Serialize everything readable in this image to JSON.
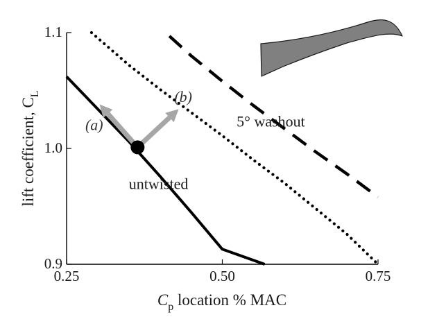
{
  "chart_data": {
    "type": "line",
    "title": "",
    "xlabel_main": "C",
    "xlabel_sub": "p",
    "xlabel_rest": " location % MAC",
    "ylabel_main": "lift coefficient, C",
    "ylabel_sub": "L",
    "xlim": [
      0.25,
      0.75
    ],
    "ylim": [
      0.9,
      1.1
    ],
    "x_ticks": [
      0.25,
      0.5,
      0.75
    ],
    "x_tick_labels": [
      "0.25",
      "0.50",
      "0.75"
    ],
    "y_ticks": [
      0.9,
      1.0,
      1.1
    ],
    "y_tick_labels": [
      "0.9",
      "1.0",
      "1.1"
    ],
    "grid": false,
    "series": [
      {
        "name": "untwisted",
        "style": "solid",
        "color": "#000000",
        "x": [
          0.25,
          0.3,
          0.35,
          0.4,
          0.45,
          0.5,
          0.568
        ],
        "y": [
          1.062,
          1.034,
          1.006,
          0.976,
          0.945,
          0.913,
          0.9
        ]
      },
      {
        "name": "",
        "style": "dotted",
        "color": "#000000",
        "x": [
          0.29,
          0.35,
          0.4,
          0.45,
          0.5,
          0.55,
          0.6,
          0.65,
          0.7,
          0.75
        ],
        "y": [
          1.1,
          1.072,
          1.051,
          1.031,
          1.011,
          0.99,
          0.97,
          0.948,
          0.926,
          0.9
        ]
      },
      {
        "name": "5° washout",
        "style": "dashed",
        "color": "#000000",
        "x": [
          0.415,
          0.45,
          0.5,
          0.55,
          0.6,
          0.65,
          0.7,
          0.75
        ],
        "y": [
          1.097,
          1.08,
          1.058,
          1.037,
          1.017,
          0.997,
          0.978,
          0.958
        ]
      }
    ],
    "marker": {
      "x": 0.364,
      "y": 1.001,
      "color": "#000000"
    },
    "arrows": [
      {
        "label": "(a)",
        "from": [
          0.364,
          1.001
        ],
        "to": [
          0.303,
          1.038
        ],
        "color": "#a6a6a6"
      },
      {
        "label": "(b)",
        "from": [
          0.364,
          1.001
        ],
        "to": [
          0.43,
          1.034
        ],
        "color": "#a6a6a6"
      }
    ],
    "annotations": [
      {
        "text": "(a)",
        "x": 0.28,
        "y": 1.016,
        "italic": true
      },
      {
        "text": "(b)",
        "x": 0.423,
        "y": 1.04,
        "italic": true
      },
      {
        "text": "untwisted",
        "x": 0.35,
        "y": 0.965,
        "italic": false
      },
      {
        "text": "5° washout",
        "x": 0.523,
        "y": 1.019,
        "italic": false
      }
    ],
    "wing_icon": {
      "name": "wing-planform-icon",
      "color": "#808080"
    }
  }
}
